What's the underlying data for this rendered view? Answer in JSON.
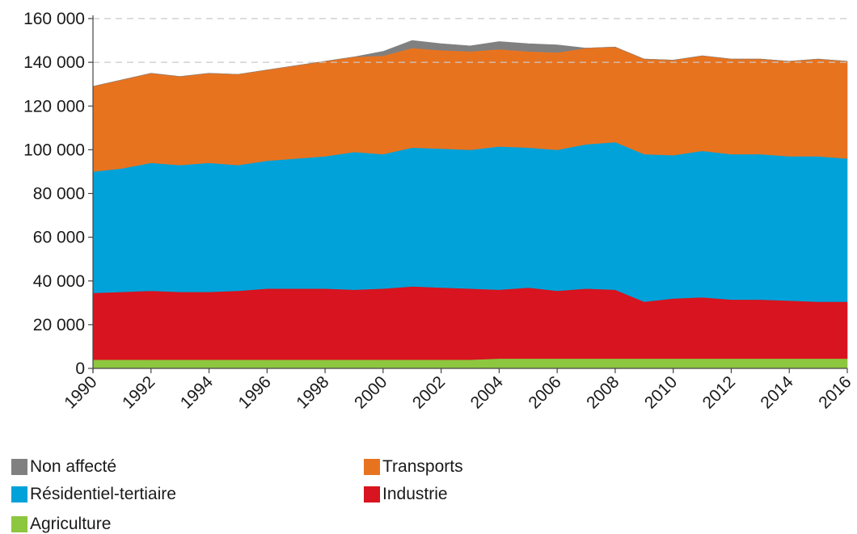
{
  "chart_data": {
    "type": "area",
    "stacked": true,
    "x": [
      1990,
      1991,
      1992,
      1993,
      1994,
      1995,
      1996,
      1997,
      1998,
      1999,
      2000,
      2001,
      2002,
      2003,
      2004,
      2005,
      2006,
      2007,
      2008,
      2009,
      2010,
      2011,
      2012,
      2013,
      2014,
      2015,
      2016
    ],
    "x_tick_labels": [
      "1990",
      "1992",
      "1994",
      "1996",
      "1998",
      "2000",
      "2002",
      "2004",
      "2006",
      "2008",
      "2010",
      "2012",
      "2014",
      "2016"
    ],
    "ylim": [
      0,
      160000
    ],
    "y_ticks": [
      0,
      20000,
      40000,
      60000,
      80000,
      100000,
      120000,
      140000,
      160000
    ],
    "y_tick_labels": [
      "0",
      "20 000",
      "40 000",
      "60 000",
      "80 000",
      "100 000",
      "120 000",
      "140 000",
      "160 000"
    ],
    "grid": "dashed gridlines at 140 000 and 160 000",
    "series": [
      {
        "name": "Agriculture",
        "color": "#8dc63f",
        "values": [
          4000,
          4000,
          4000,
          4000,
          4000,
          4000,
          4000,
          4000,
          4000,
          4000,
          4000,
          4000,
          4000,
          4000,
          4500,
          4500,
          4500,
          4500,
          4500,
          4500,
          4500,
          4500,
          4500,
          4500,
          4500,
          4500,
          4500
        ]
      },
      {
        "name": "Industrie",
        "color": "#d7141f",
        "values": [
          30500,
          31000,
          31500,
          31000,
          31000,
          31500,
          32500,
          32500,
          32500,
          32000,
          32500,
          33500,
          33000,
          32500,
          31500,
          32500,
          31000,
          32000,
          31500,
          26000,
          27500,
          28000,
          27000,
          27000,
          26500,
          26000,
          26000
        ]
      },
      {
        "name": "Résidentiel-tertiaire",
        "color": "#00a2d9",
        "values": [
          55500,
          56500,
          58500,
          58000,
          59000,
          57500,
          58500,
          59500,
          60500,
          63000,
          61500,
          63500,
          63500,
          63500,
          65500,
          64000,
          64500,
          66000,
          67500,
          67500,
          65500,
          67000,
          66500,
          66500,
          66000,
          66500,
          65500
        ]
      },
      {
        "name": "Transports",
        "color": "#e8731f",
        "values": [
          39000,
          40500,
          41000,
          40500,
          41000,
          41500,
          41500,
          42500,
          43500,
          43500,
          45000,
          45500,
          45000,
          45000,
          44500,
          44000,
          44500,
          44000,
          43500,
          43500,
          43500,
          43500,
          43500,
          43500,
          43500,
          44500,
          44500
        ]
      },
      {
        "name": "Non affecté",
        "color": "#808080",
        "values": [
          0,
          0,
          0,
          0,
          0,
          0,
          0,
          0,
          0,
          0,
          2000,
          3500,
          3000,
          2500,
          3500,
          3500,
          3500,
          0,
          0,
          0,
          0,
          0,
          0,
          0,
          0,
          0,
          0
        ]
      }
    ],
    "legend_order": [
      "Non affecté",
      "Transports",
      "Résidentiel-tertiaire",
      "Industrie",
      "Agriculture"
    ],
    "legend_placement": "bottom",
    "title": "",
    "xlabel": "",
    "ylabel": ""
  }
}
